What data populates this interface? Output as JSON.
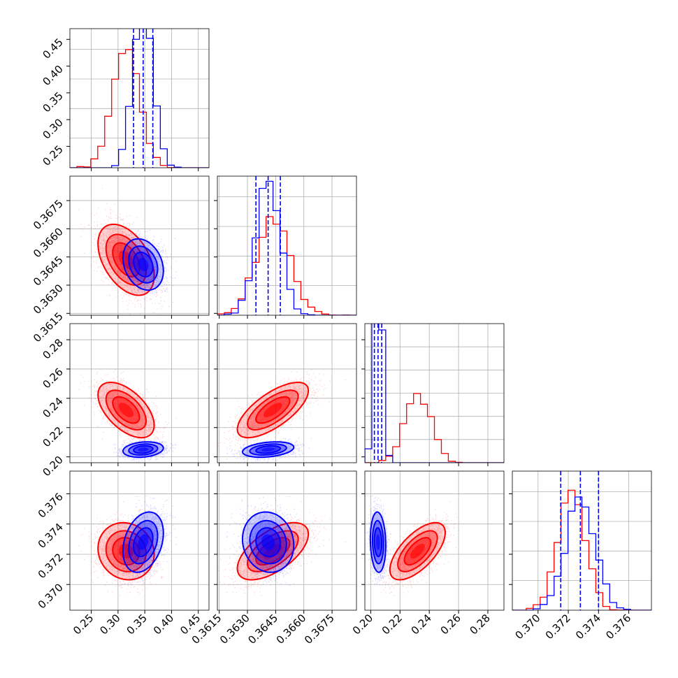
{
  "chart_data": {
    "type": "corner",
    "grid": true,
    "colors": {
      "blue": "#0000ff",
      "red": "#ff0000"
    },
    "series": [
      {
        "id": "blue",
        "mean": [
          0.347,
          0.3641,
          0.205,
          0.3728
        ],
        "sd": [
          0.018,
          0.00065,
          0.0025,
          0.00095
        ],
        "corr": [
          [
            1,
            -0.25,
            0.2,
            0.3
          ],
          [
            -0.25,
            1,
            0.3,
            -0.1
          ],
          [
            0.2,
            0.3,
            1,
            -0.1
          ],
          [
            0.3,
            -0.1,
            -0.1,
            1
          ]
        ],
        "quantiles": [
          [
            0.329,
            0.347,
            0.365
          ],
          [
            0.36345,
            0.3641,
            0.36475
          ],
          [
            0.2025,
            0.205,
            0.2075
          ],
          [
            0.3715,
            0.3728,
            0.374
          ]
        ]
      },
      {
        "id": "red",
        "mean": [
          0.315,
          0.36435,
          0.232,
          0.3722
        ],
        "sd": [
          0.025,
          0.0009,
          0.009,
          0.0009
        ],
        "corr": [
          [
            1,
            -0.45,
            -0.55,
            -0.1
          ],
          [
            -0.45,
            1,
            0.7,
            0.6
          ],
          [
            -0.55,
            0.7,
            1,
            0.65
          ],
          [
            -0.1,
            0.6,
            0.65,
            1
          ]
        ]
      }
    ],
    "params": [
      {
        "range": [
          0.21,
          0.47
        ],
        "ticks": [
          0.25,
          0.3,
          0.35,
          0.4,
          0.45
        ],
        "tick_labels": [
          "0.25",
          "0.30",
          "0.35",
          "0.40",
          "0.45"
        ],
        "hist_max": 0.235,
        "hist_ticks": [
          0.05,
          0.1,
          0.15,
          0.2
        ]
      },
      {
        "range": [
          0.3614,
          0.3688
        ],
        "ticks": [
          0.3615,
          0.363,
          0.3645,
          0.366,
          0.3675
        ],
        "tick_labels": [
          "0.3615",
          "0.3630",
          "0.3645",
          "0.3660",
          "0.3675"
        ],
        "hist_max": 0.235,
        "hist_ticks": [
          0.05,
          0.1,
          0.15,
          0.2
        ]
      },
      {
        "range": [
          0.196,
          0.291
        ],
        "ticks": [
          0.2,
          0.22,
          0.24,
          0.26,
          0.28
        ],
        "tick_labels": [
          "0.20",
          "0.22",
          "0.24",
          "0.26",
          "0.28"
        ],
        "hist_max": 0.42,
        "hist_ticks": [
          0.07,
          0.14,
          0.21,
          0.28,
          0.35
        ]
      },
      {
        "range": [
          0.3683,
          0.3775
        ],
        "ticks": [
          0.37,
          0.372,
          0.374,
          0.376
        ],
        "tick_labels": [
          "0.370",
          "0.372",
          "0.374",
          "0.376"
        ],
        "hist_max": 0.235,
        "hist_ticks": [
          0.05,
          0.1,
          0.15,
          0.2
        ]
      }
    ]
  }
}
